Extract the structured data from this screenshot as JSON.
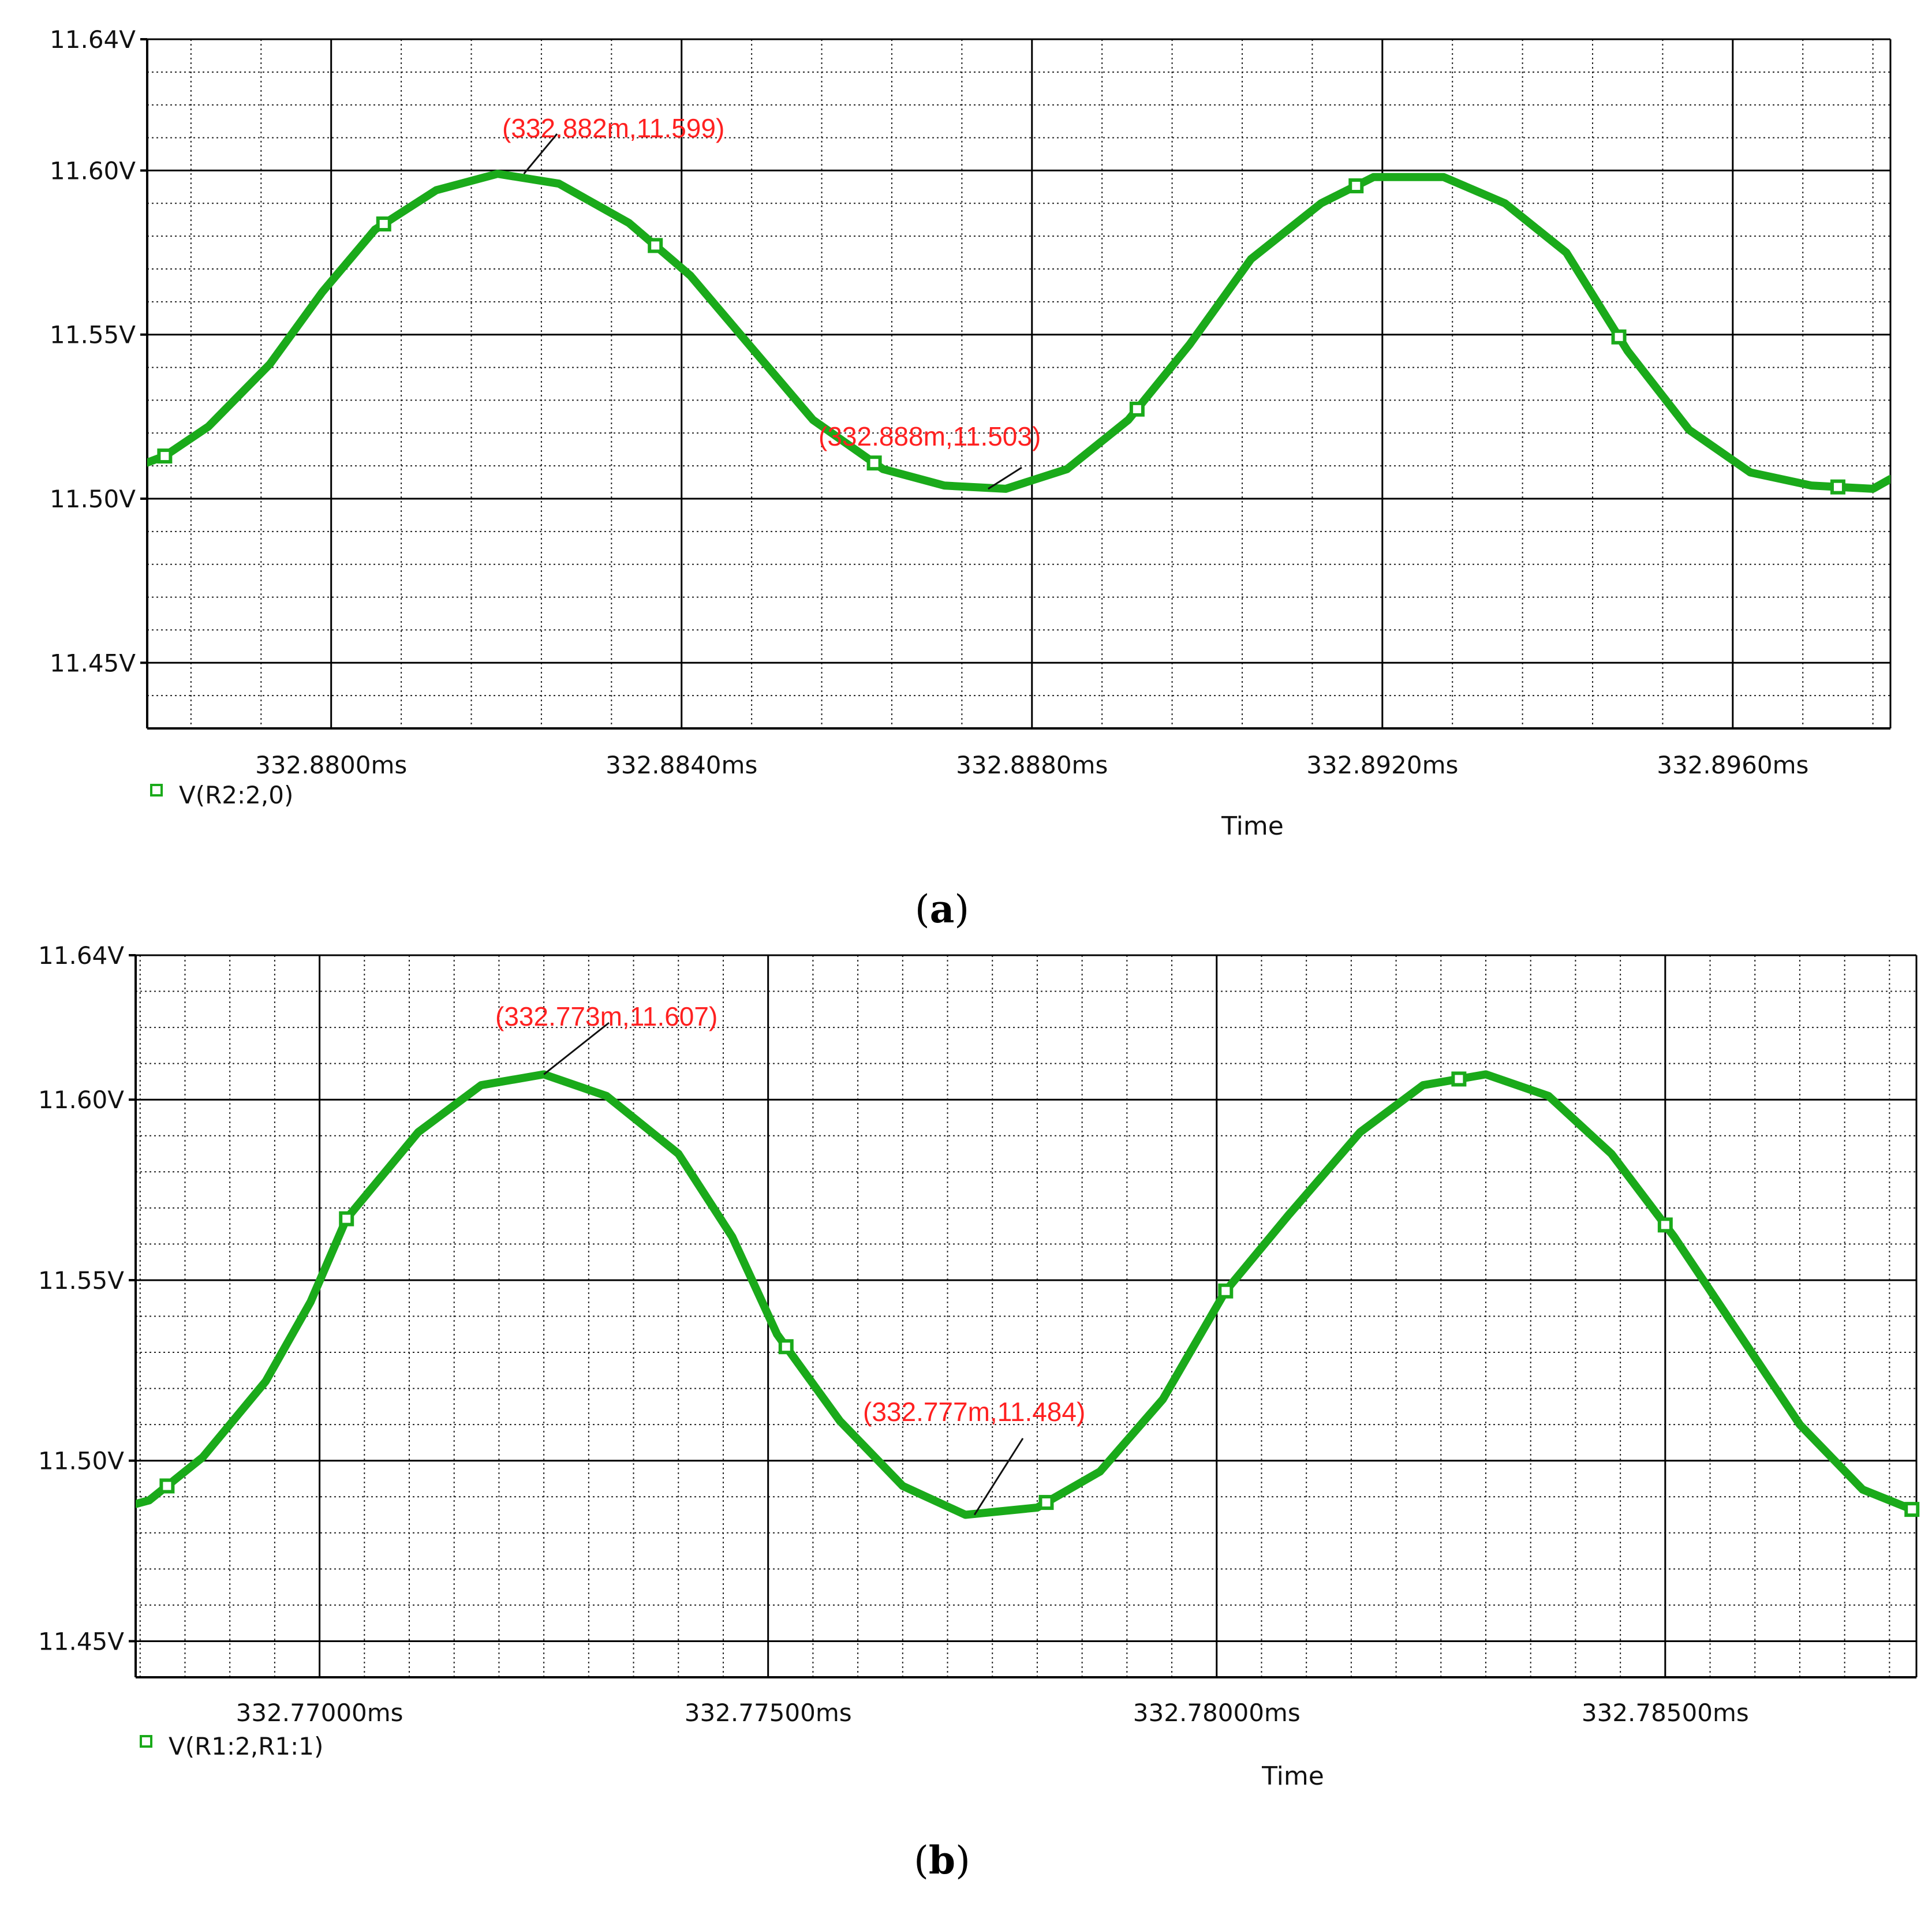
{
  "chart_data": [
    {
      "type": "line",
      "caption": "(a)",
      "caption_letter": "a",
      "xlabel": "Time",
      "xlim": [
        332.8779,
        332.8978
      ],
      "ylim": [
        11.43,
        11.64
      ],
      "y_ticks": [
        11.45,
        11.5,
        11.55,
        11.6,
        11.64
      ],
      "y_tick_labels": [
        "11.45V",
        "11.50V",
        "11.55V",
        "11.60V",
        "11.64V"
      ],
      "x_ticks": [
        332.88,
        332.884,
        332.888,
        332.892,
        332.896
      ],
      "x_tick_labels": [
        "332.8800ms",
        "332.8840ms",
        "332.8880ms",
        "332.8920ms",
        "332.8960ms"
      ],
      "y_minor_step": 0.01,
      "x_minor_step": 0.0008,
      "grid": true,
      "legend_position": "bottom-left",
      "series": [
        {
          "name": "V(R2:2,0)",
          "color": "#1aaa1a",
          "x": [
            332.8779,
            332.8781,
            332.8786,
            332.8793,
            332.8799,
            332.8805,
            332.8812,
            332.8819,
            332.8826,
            332.8834,
            332.8841,
            332.8848,
            332.8855,
            332.8863,
            332.887,
            332.8877,
            332.8884,
            332.8891,
            332.8898,
            332.8905,
            332.8913,
            332.8919,
            332.8927,
            332.8934,
            332.8941,
            332.8948,
            332.8955,
            332.8962,
            332.8969,
            332.8976,
            332.8978
          ],
          "y": [
            11.511,
            11.513,
            11.522,
            11.541,
            11.563,
            11.582,
            11.594,
            11.599,
            11.596,
            11.584,
            11.568,
            11.546,
            11.524,
            11.509,
            11.504,
            11.503,
            11.509,
            11.524,
            11.547,
            11.573,
            11.59,
            11.598,
            11.598,
            11.59,
            11.575,
            11.545,
            11.521,
            11.508,
            11.504,
            11.503,
            11.506
          ],
          "marker_x": [
            332.8781,
            332.8806,
            332.8837,
            332.8862,
            332.8892,
            332.8917,
            332.8947,
            332.8972
          ]
        }
      ],
      "annotations": [
        {
          "text": "(332.882m,11.599)",
          "x": 332.8822,
          "y": 11.599
        },
        {
          "text": "(332.888m,11.503)",
          "x": 332.8875,
          "y": 11.503
        }
      ]
    },
    {
      "type": "line",
      "caption": "(b)",
      "caption_letter": "b",
      "xlabel": "Time",
      "xlim": [
        332.76795,
        332.7878
      ],
      "ylim": [
        11.44,
        11.64
      ],
      "y_ticks": [
        11.45,
        11.5,
        11.55,
        11.6,
        11.64
      ],
      "y_tick_labels": [
        "11.45V",
        "11.50V",
        "11.55V",
        "11.60V",
        "11.64V"
      ],
      "x_ticks": [
        332.77,
        332.775,
        332.78,
        332.785
      ],
      "x_tick_labels": [
        "332.77000ms",
        "332.77500ms",
        "332.78000ms",
        "332.78500ms"
      ],
      "y_minor_step": 0.01,
      "x_minor_step": 0.0005,
      "grid": true,
      "legend_position": "bottom-left",
      "series": [
        {
          "name": "V(R1:2,R1:1)",
          "color": "#1aaa1a",
          "x": [
            332.76795,
            332.7681,
            332.7687,
            332.7694,
            332.7699,
            332.7703,
            332.7711,
            332.7718,
            332.7725,
            332.7732,
            332.774,
            332.7746,
            332.7751,
            332.7758,
            332.7765,
            332.7772,
            332.778,
            332.7787,
            332.7794,
            332.7801,
            332.7808,
            332.7816,
            332.7823,
            332.783,
            332.7837,
            332.7844,
            332.7851,
            332.7858,
            332.7865,
            332.7872,
            332.7878
          ],
          "y": [
            11.488,
            11.489,
            11.501,
            11.522,
            11.544,
            11.567,
            11.591,
            11.604,
            11.607,
            11.601,
            11.585,
            11.562,
            11.535,
            11.511,
            11.493,
            11.485,
            11.487,
            11.497,
            11.517,
            11.547,
            11.568,
            11.591,
            11.604,
            11.607,
            11.601,
            11.585,
            11.562,
            11.536,
            11.51,
            11.492,
            11.486
          ],
          "marker_x": [
            332.7683,
            332.7703,
            332.7752,
            332.7781,
            332.7801,
            332.7827,
            332.785,
            332.78775
          ]
        }
      ],
      "annotations": [
        {
          "text": "(332.773m,11.607)",
          "x": 332.7725,
          "y": 11.607
        },
        {
          "text": "(332.777m,11.484)",
          "x": 332.7773,
          "y": 11.485
        }
      ]
    }
  ]
}
